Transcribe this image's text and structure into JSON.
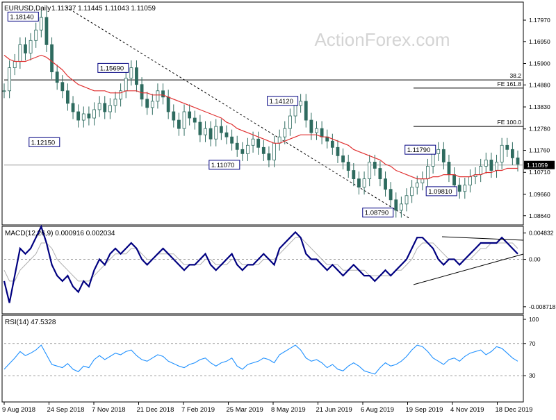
{
  "header": {
    "symbol": "EURUSD,Daily",
    "ohlc": "1.11337 1.11445 1.11043 1.11059"
  },
  "watermark": "ActionForex.com",
  "colors": {
    "candle": "#2e6b5f",
    "ma": "#e03030",
    "macd_main": "#000080",
    "macd_signal": "#b0b0b0",
    "rsi": "#1e90ff",
    "price_label_bg": "#000000",
    "annotation_border": "#000080"
  },
  "chart_data": [
    {
      "type": "line",
      "panel": "price",
      "y_ticks": [
        "1.17970",
        "1.16950",
        "1.15900",
        "1.14880",
        "1.13830",
        "1.12780",
        "1.11760",
        "1.10710",
        "1.09660",
        "1.08640"
      ],
      "ylim": [
        1.084,
        1.186
      ],
      "x_tick_labels": [
        "9 Aug 2018",
        "24 Sep 2018",
        "7 Nov 2018",
        "21 Dec 2018",
        "7 Feb 2019",
        "25 Mar 2019",
        "8 May 2019",
        "21 Jun 2019",
        "6 Aug 2019",
        "19 Sep 2019",
        "4 Nov 2019",
        "18 Dec 2019"
      ],
      "current_price": "1.11059",
      "series": [
        {
          "values": [
            1.146,
            1.157,
            1.16,
            1.168,
            1.164,
            1.17,
            1.175,
            1.181,
            1.168,
            1.155,
            1.15,
            1.146,
            1.14,
            1.136,
            1.132,
            1.135,
            1.133,
            1.137,
            1.14,
            1.136,
            1.139,
            1.142,
            1.146,
            1.152,
            1.157,
            1.149,
            1.142,
            1.138,
            1.141,
            1.146,
            1.143,
            1.136,
            1.132,
            1.128,
            1.136,
            1.133,
            1.131,
            1.125,
            1.128,
            1.123,
            1.129,
            1.126,
            1.124,
            1.121,
            1.118,
            1.116,
            1.12,
            1.123,
            1.119,
            1.116,
            1.113,
            1.121,
            1.124,
            1.128,
            1.134,
            1.139,
            1.141,
            1.132,
            1.126,
            1.128,
            1.124,
            1.122,
            1.119,
            1.115,
            1.112,
            1.108,
            1.104,
            1.1,
            1.104,
            1.112,
            1.109,
            1.104,
            1.099,
            1.094,
            1.089,
            1.092,
            1.096,
            1.1,
            1.102,
            1.104,
            1.11,
            1.116,
            1.118,
            1.112,
            1.106,
            1.101,
            1.098,
            1.101,
            1.105,
            1.106,
            1.11,
            1.113,
            1.108,
            1.112,
            1.12,
            1.118,
            1.114,
            1.111
          ]
        },
        {
          "name": "",
          "values": [
            1.163,
            1.161,
            1.16,
            1.16,
            1.16,
            1.161,
            1.162,
            1.163,
            1.162,
            1.16,
            1.158,
            1.156,
            1.153,
            1.151,
            1.149,
            1.148,
            1.147,
            1.146,
            1.146,
            1.146,
            1.145,
            1.145,
            1.145,
            1.146,
            1.146,
            1.146,
            1.145,
            1.145,
            1.144,
            1.144,
            1.144,
            1.143,
            1.142,
            1.141,
            1.14,
            1.139,
            1.138,
            1.137,
            1.136,
            1.135,
            1.134,
            1.133,
            1.131,
            1.13,
            1.128,
            1.127,
            1.126,
            1.125,
            1.124,
            1.123,
            1.122,
            1.121,
            1.121,
            1.122,
            1.123,
            1.124,
            1.125,
            1.125,
            1.125,
            1.125,
            1.124,
            1.124,
            1.123,
            1.122,
            1.121,
            1.12,
            1.118,
            1.117,
            1.116,
            1.115,
            1.114,
            1.113,
            1.111,
            1.11,
            1.108,
            1.107,
            1.106,
            1.105,
            1.104,
            1.104,
            1.104,
            1.105,
            1.105,
            1.106,
            1.106,
            1.106,
            1.105,
            1.105,
            1.105,
            1.106,
            1.106,
            1.107,
            1.107,
            1.108,
            1.108,
            1.109,
            1.109,
            1.109
          ]
        }
      ],
      "horizontal_levels": [
        {
          "label": "38.2",
          "value": 1.1512
        },
        {
          "label": "FE 161.8",
          "value": 1.1473
        },
        {
          "label": "FE 100.0",
          "value": 1.129
        }
      ],
      "annotations": [
        {
          "label": "1.18140",
          "index": 7,
          "value": 1.1814
        },
        {
          "label": "1.15690",
          "index": 24,
          "value": 1.1569
        },
        {
          "label": "1.12150",
          "index": 11,
          "value": 1.1215
        },
        {
          "label": "1.11070",
          "index": 45,
          "value": 1.1107
        },
        {
          "label": "1.14120",
          "index": 56,
          "value": 1.1412
        },
        {
          "label": "1.08790",
          "index": 74,
          "value": 1.0879
        },
        {
          "label": "1.11790",
          "index": 82,
          "value": 1.1179
        },
        {
          "label": "1.09810",
          "index": 86,
          "value": 1.0981
        }
      ]
    },
    {
      "type": "line",
      "panel": "macd",
      "title": "MACD(12,26,9) 0.000916 0.002034",
      "y_ticks": [
        "0.004832",
        "0.00",
        "-0.008718"
      ],
      "ylim": [
        -0.0095,
        0.0053
      ],
      "series": [
        {
          "values": [
            -0.004,
            -0.008,
            -0.003,
            0.002,
            0.001,
            0.002,
            0.004,
            0.006,
            0.003,
            -0.001,
            -0.003,
            -0.004,
            -0.003,
            -0.005,
            -0.006,
            -0.004,
            -0.005,
            -0.002,
            0.0,
            -0.001,
            0.001,
            0.002,
            0.001,
            0.002,
            0.003,
            0.002,
            0.0,
            -0.001,
            0.0,
            0.001,
            0.002,
            0.001,
            0.0,
            -0.001,
            -0.002,
            -0.001,
            -0.001,
            0.0,
            0.001,
            -0.001,
            -0.002,
            -0.001,
            0.0,
            0.001,
            -0.001,
            -0.002,
            -0.001,
            -0.001,
            0.0,
            0.001,
            0.0,
            -0.001,
            0.002,
            0.003,
            0.004,
            0.005,
            0.004,
            0.001,
            0.0,
            0.0,
            -0.001,
            -0.002,
            -0.001,
            -0.002,
            -0.003,
            -0.002,
            -0.001,
            -0.002,
            -0.003,
            -0.003,
            -0.004,
            -0.003,
            -0.002,
            -0.003,
            -0.002,
            -0.001,
            0.0,
            0.002,
            0.004,
            0.004,
            0.003,
            0.002,
            0.0,
            -0.001,
            0.0,
            0.0,
            -0.001,
            0.0,
            0.001,
            0.002,
            0.003,
            0.003,
            0.003,
            0.003,
            0.004,
            0.003,
            0.002,
            0.001
          ]
        },
        {
          "values": [
            -0.002,
            -0.004,
            -0.004,
            -0.002,
            -0.001,
            0.0,
            0.001,
            0.003,
            0.003,
            0.002,
            0.0,
            -0.001,
            -0.002,
            -0.003,
            -0.004,
            -0.004,
            -0.004,
            -0.003,
            -0.002,
            -0.001,
            0.0,
            0.001,
            0.001,
            0.001,
            0.002,
            0.002,
            0.001,
            0.0,
            0.0,
            0.001,
            0.001,
            0.001,
            0.001,
            0.0,
            -0.001,
            -0.001,
            -0.001,
            -0.001,
            0.0,
            0.0,
            -0.001,
            -0.001,
            -0.001,
            0.0,
            0.0,
            -0.001,
            -0.001,
            -0.001,
            -0.001,
            0.0,
            0.0,
            0.0,
            0.001,
            0.002,
            0.003,
            0.004,
            0.004,
            0.003,
            0.002,
            0.001,
            0.0,
            -0.001,
            -0.001,
            -0.001,
            -0.002,
            -0.002,
            -0.002,
            -0.002,
            -0.002,
            -0.003,
            -0.003,
            -0.003,
            -0.003,
            -0.003,
            -0.002,
            -0.002,
            -0.001,
            0.0,
            0.002,
            0.003,
            0.003,
            0.003,
            0.002,
            0.001,
            0.0,
            0.0,
            0.0,
            0.0,
            0.0,
            0.001,
            0.002,
            0.002,
            0.003,
            0.003,
            0.003,
            0.003,
            0.003,
            0.002
          ]
        }
      ]
    },
    {
      "type": "line",
      "panel": "rsi",
      "title": "RSI(14) 47.5328",
      "y_ticks": [
        "100",
        "70",
        "30"
      ],
      "ylim": [
        0,
        100
      ],
      "levels": [
        70,
        30
      ],
      "series": [
        {
          "values": [
            38,
            45,
            52,
            60,
            55,
            58,
            62,
            68,
            56,
            44,
            42,
            40,
            45,
            38,
            35,
            42,
            40,
            50,
            55,
            50,
            54,
            58,
            56,
            60,
            62,
            55,
            50,
            48,
            52,
            56,
            54,
            48,
            45,
            42,
            40,
            44,
            46,
            50,
            52,
            46,
            42,
            46,
            48,
            52,
            42,
            38,
            44,
            46,
            48,
            52,
            50,
            46,
            56,
            60,
            64,
            68,
            62,
            52,
            48,
            50,
            46,
            40,
            44,
            38,
            36,
            42,
            46,
            42,
            36,
            34,
            32,
            40,
            46,
            42,
            44,
            48,
            54,
            62,
            68,
            66,
            60,
            52,
            48,
            44,
            50,
            52,
            48,
            54,
            58,
            60,
            62,
            56,
            60,
            66,
            64,
            58,
            52,
            48
          ]
        }
      ]
    }
  ]
}
